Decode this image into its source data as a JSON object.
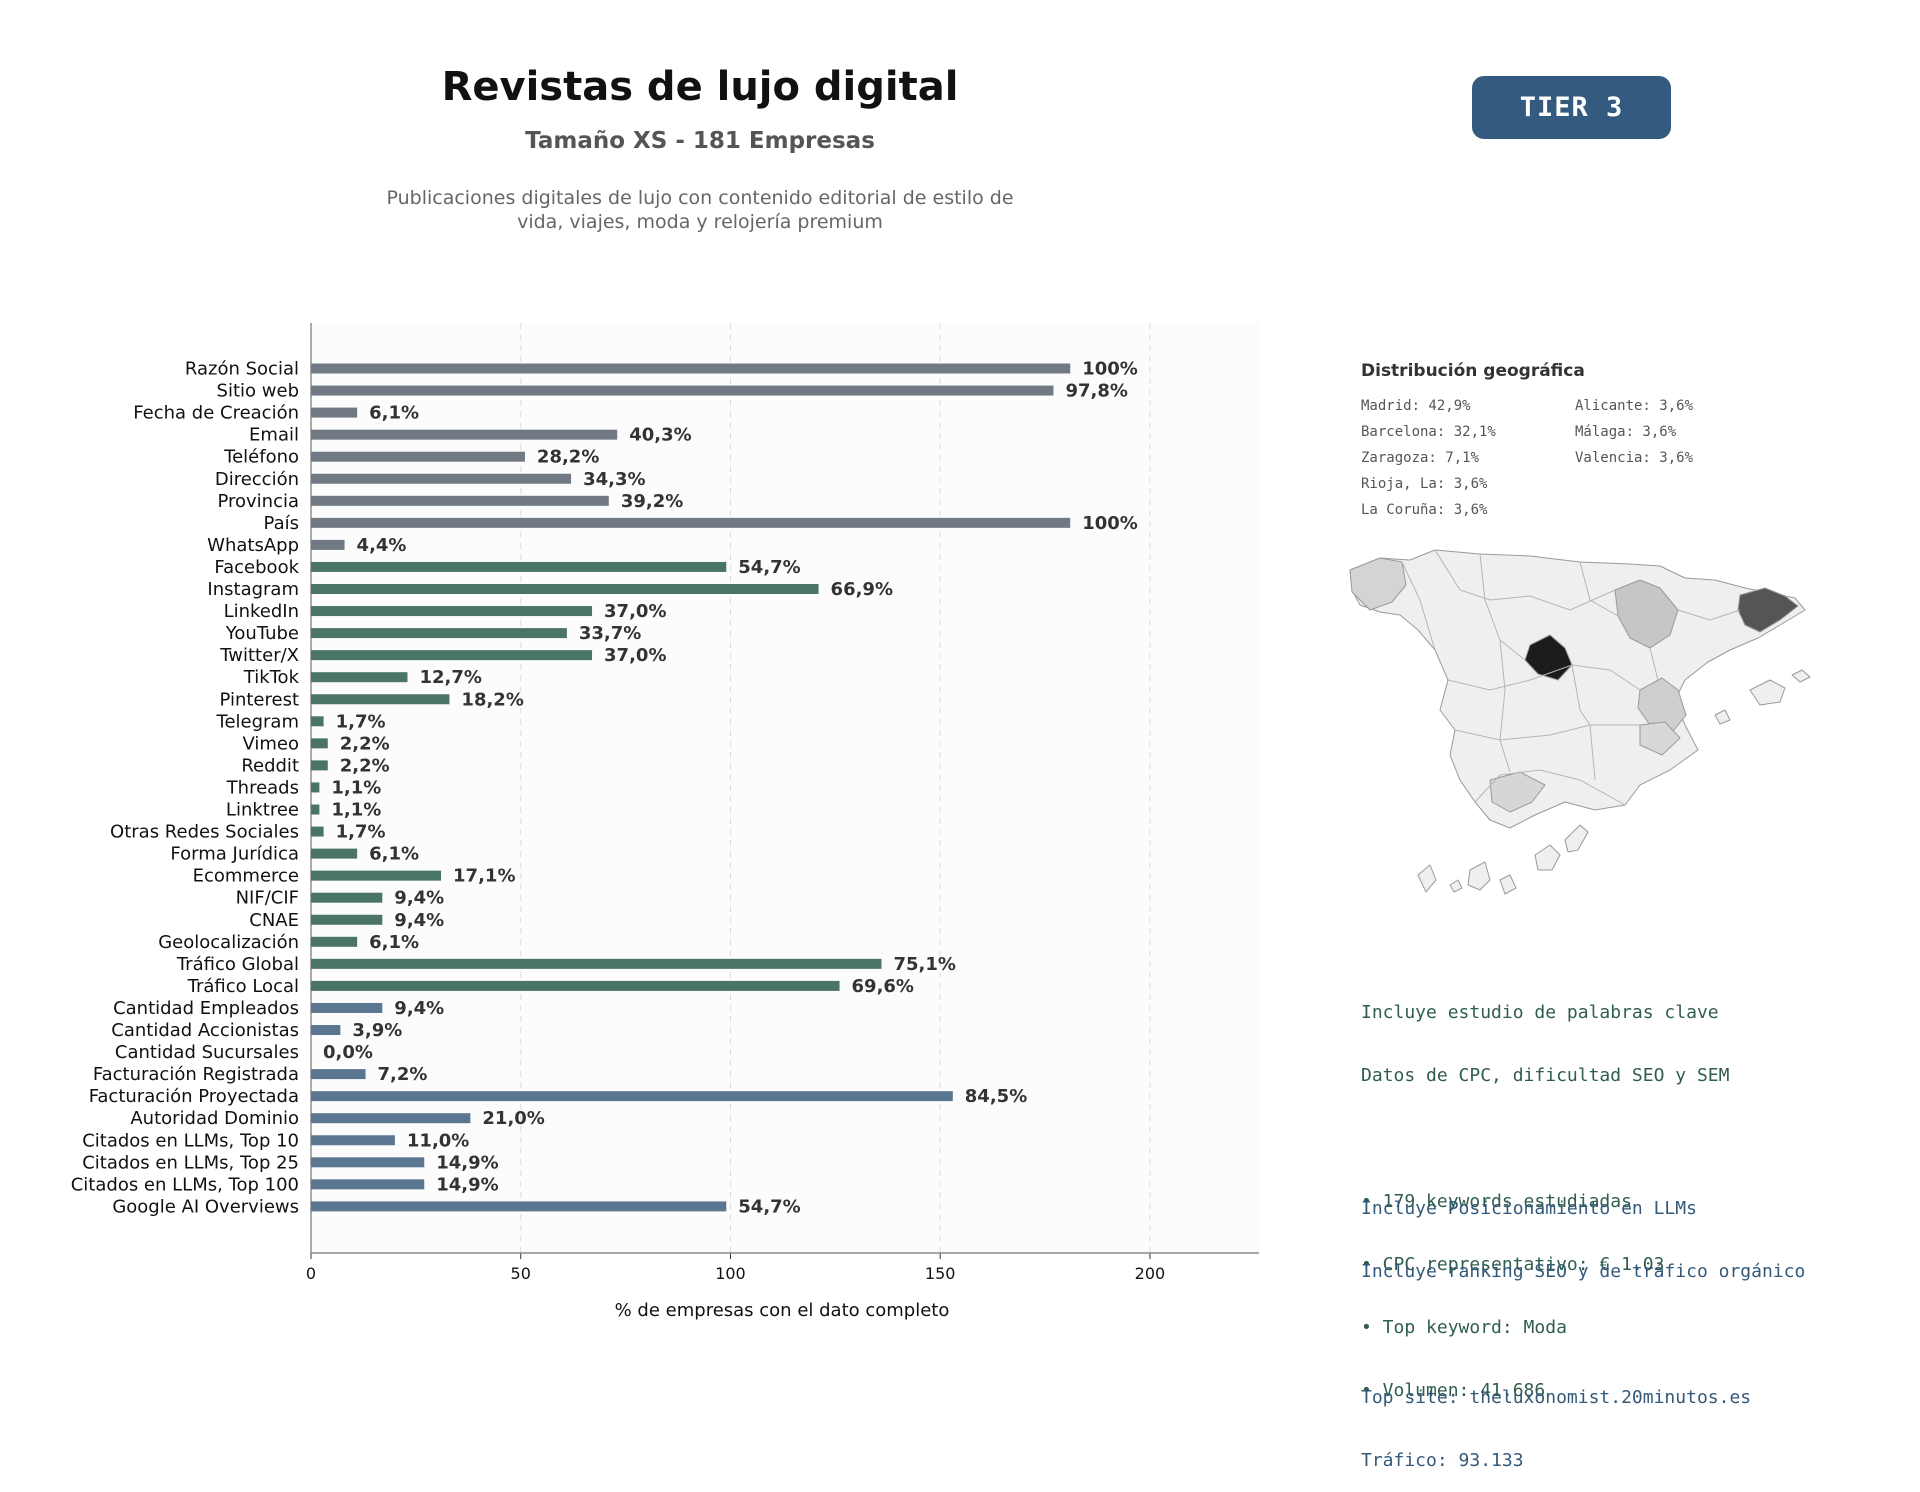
{
  "header": {
    "title": "Revistas de lujo digital",
    "subtitle": "Tamaño XS - 181 Empresas",
    "description_line1": "Publicaciones digitales de lujo con contenido editorial de estilo de",
    "description_line2": "vida, viajes, moda y relojería premium",
    "tier_badge": "TIER 3"
  },
  "colors": {
    "gray": "#717a84",
    "green": "#4a7566",
    "blue": "#5a7690",
    "tier": "#345a7f"
  },
  "chart_data": {
    "type": "bar",
    "orientation": "horizontal",
    "xlabel": "% de empresas con el dato completo",
    "xlim": [
      0,
      226
    ],
    "xticks": [
      0,
      50,
      100,
      150,
      200
    ],
    "grid": "vertical dashed",
    "categories": [
      "Razón Social",
      "Sitio web",
      "Fecha de Creación",
      "Email",
      "Teléfono",
      "Dirección",
      "Provincia",
      "País",
      "WhatsApp",
      "Facebook",
      "Instagram",
      "LinkedIn",
      "YouTube",
      "Twitter/X",
      "TikTok",
      "Pinterest",
      "Telegram",
      "Vimeo",
      "Reddit",
      "Threads",
      "Linktree",
      "Otras Redes Sociales",
      "Forma Jurídica",
      "Ecommerce",
      "NIF/CIF",
      "CNAE",
      "Geolocalización",
      "Tráfico Global",
      "Tráfico Local",
      "Cantidad Empleados",
      "Cantidad Accionistas",
      "Cantidad Sucursales",
      "Facturación Registrada",
      "Facturación Proyectada",
      "Autoridad Dominio",
      "Citados en LLMs, Top 10",
      "Citados en LLMs, Top 25",
      "Citados en LLMs, Top 100",
      "Google AI Overviews"
    ],
    "values": [
      181,
      177,
      11,
      73,
      51,
      62,
      71,
      181,
      8,
      99,
      121,
      67,
      61,
      67,
      23,
      33,
      3,
      4,
      4,
      2,
      2,
      3,
      11,
      31,
      17,
      17,
      11,
      136,
      126,
      17,
      7,
      0,
      13,
      153,
      38,
      20,
      27,
      27,
      99
    ],
    "labels": [
      "100%",
      "97,8%",
      "6,1%",
      "40,3%",
      "28,2%",
      "34,3%",
      "39,2%",
      "100%",
      "4,4%",
      "54,7%",
      "66,9%",
      "37,0%",
      "33,7%",
      "37,0%",
      "12,7%",
      "18,2%",
      "1,7%",
      "2,2%",
      "2,2%",
      "1,1%",
      "1,1%",
      "1,7%",
      "6,1%",
      "17,1%",
      "9,4%",
      "9,4%",
      "6,1%",
      "75,1%",
      "69,6%",
      "9,4%",
      "3,9%",
      "0,0%",
      "7,2%",
      "84,5%",
      "21,0%",
      "11,0%",
      "14,9%",
      "14,9%",
      "54,7%"
    ],
    "groups": [
      "gray",
      "gray",
      "gray",
      "gray",
      "gray",
      "gray",
      "gray",
      "gray",
      "gray",
      "green",
      "green",
      "green",
      "green",
      "green",
      "green",
      "green",
      "green",
      "green",
      "green",
      "green",
      "green",
      "green",
      "green",
      "green",
      "green",
      "green",
      "green",
      "green",
      "green",
      "blue",
      "blue",
      "blue",
      "blue",
      "blue",
      "blue",
      "blue",
      "blue",
      "blue",
      "blue"
    ]
  },
  "geo": {
    "title": "Distribución geográfica",
    "items": [
      "Madrid: 42,9%",
      "Barcelona: 32,1%",
      "Zaragoza: 7,1%",
      "Rioja, La: 3,6%",
      "La Coruña: 3,6%",
      "Alicante: 3,6%",
      "Málaga: 3,6%",
      "Valencia: 3,6%"
    ]
  },
  "keywords": {
    "line1": "Incluye estudio de palabras clave",
    "line2": "Datos de CPC, dificultad SEO y SEM",
    "bullets": [
      "• 179 keywords estudiadas",
      "• CPC representativo: € 1.03",
      "• Top keyword: Moda",
      "• Volumen: 41.686"
    ]
  },
  "llm": {
    "line1": "Incluye Posicionamiento en LLMs",
    "line2": "Incluye ranking SEO y de tráfico orgánico",
    "top_site": "Top site: theluxonomist.20minutos.es",
    "traffic": "Tráfico: 93.133"
  }
}
